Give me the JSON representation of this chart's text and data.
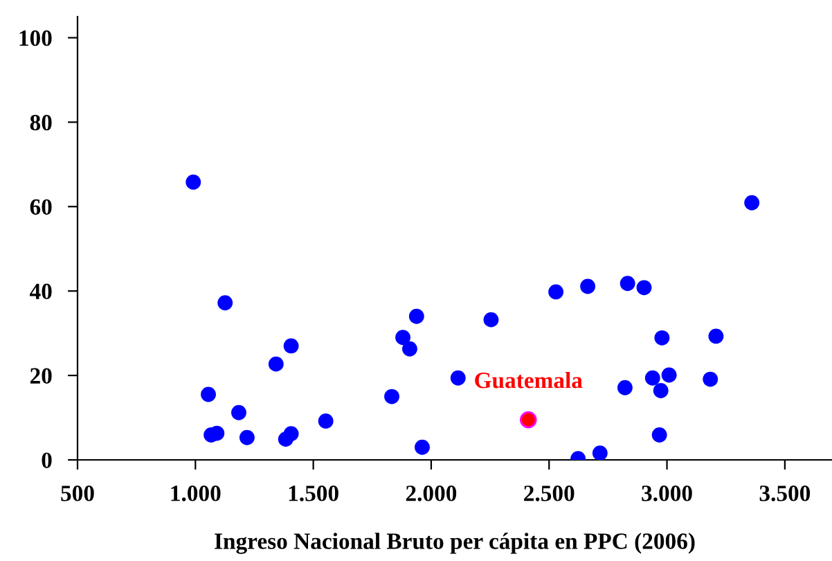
{
  "chart_data": {
    "type": "scatter",
    "xlabel": "Ingreso Nacional Bruto per cápita en PPC (2006)",
    "xlim": [
      500,
      3700
    ],
    "xticks": [
      {
        "value": 500,
        "label": "500"
      },
      {
        "value": 1000,
        "label": "1.000"
      },
      {
        "value": 1500,
        "label": "1.500"
      },
      {
        "value": 2000,
        "label": "2.000"
      },
      {
        "value": 2500,
        "label": "2.500"
      },
      {
        "value": 3000,
        "label": "3.000"
      },
      {
        "value": 3500,
        "label": "3.500"
      }
    ],
    "ylim": [
      0,
      105
    ],
    "yticks": [
      0,
      20,
      40,
      60,
      80,
      100
    ],
    "grid": false,
    "legend": false,
    "marker": "circle",
    "series": [
      {
        "color": "#0000ff",
        "x": [
          991,
          1126,
          1055,
          1067,
          1091,
          1184,
          1219,
          1342,
          1406,
          1383,
          1406,
          1553,
          1833,
          1880,
          1909,
          1938,
          1962,
          2114,
          2254,
          2529,
          2664,
          2833,
          2903,
          2979,
          3208,
          2939,
          3009,
          2974,
          2822,
          3184,
          2968,
          2623,
          2716,
          3360
        ],
        "values": [
          65.8,
          37.2,
          15.5,
          5.9,
          6.3,
          11.2,
          5.3,
          22.7,
          27,
          4.9,
          6.2,
          9.2,
          15,
          29,
          26.3,
          34,
          3.0,
          19.4,
          33.2,
          39.8,
          41.1,
          41.8,
          40.8,
          28.9,
          29.3,
          19.4,
          20.1,
          16.4,
          17.1,
          19.1,
          5.9,
          0.3,
          1.6,
          60.9
        ]
      },
      {
        "name": "Guatemala",
        "color": "#ff0000",
        "x": [
          2412
        ],
        "values": [
          9.5
        ]
      }
    ]
  }
}
